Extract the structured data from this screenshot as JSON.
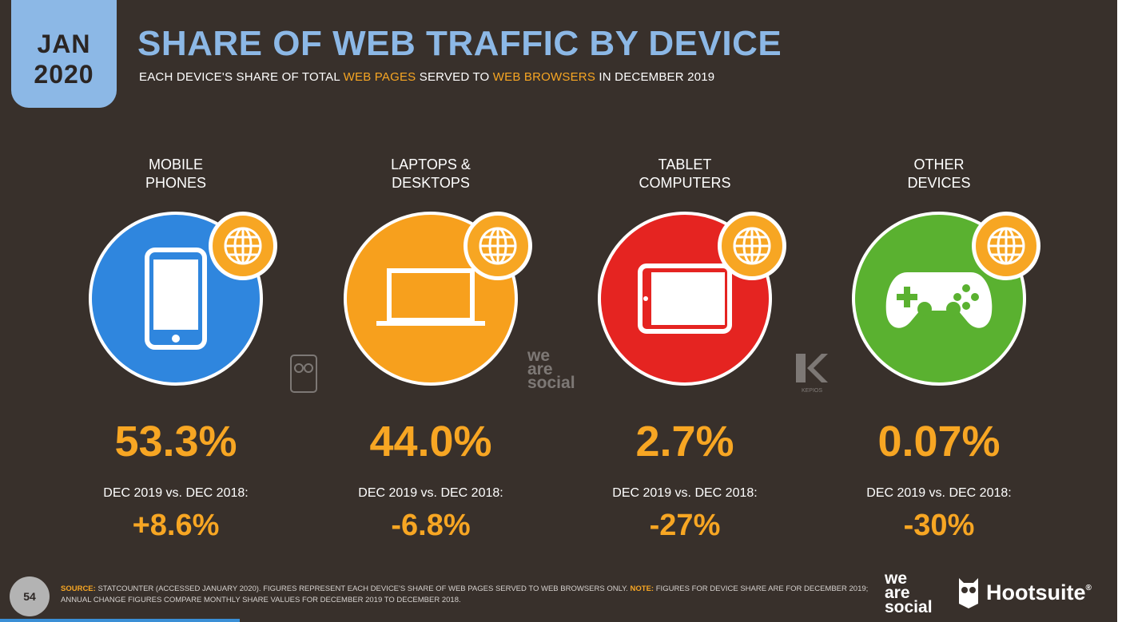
{
  "header": {
    "badge_month": "JAN",
    "badge_year": "2020",
    "title": "SHARE OF WEB TRAFFIC BY DEVICE",
    "subtitle_part1": "EACH DEVICE'S SHARE OF TOTAL ",
    "subtitle_hl1": "WEB PAGES",
    "subtitle_part2": " SERVED TO ",
    "subtitle_hl2": "WEB BROWSERS",
    "subtitle_part3": " IN DECEMBER 2019"
  },
  "devices": [
    {
      "label_line1": "MOBILE",
      "label_line2": "PHONES",
      "value": "53.3%",
      "change_label": "DEC 2019 vs. DEC 2018:",
      "change": "+8.6%",
      "color": "#2f86de",
      "icon": "smartphone-icon"
    },
    {
      "label_line1": "LAPTOPS &",
      "label_line2": "DESKTOPS",
      "value": "44.0%",
      "change_label": "DEC 2019 vs. DEC 2018:",
      "change": "-6.8%",
      "color": "#f7a01d",
      "icon": "laptop-icon"
    },
    {
      "label_line1": "TABLET",
      "label_line2": "COMPUTERS",
      "value": "2.7%",
      "change_label": "DEC 2019 vs. DEC 2018:",
      "change": "-27%",
      "color": "#e52421",
      "icon": "tablet-icon"
    },
    {
      "label_line1": "OTHER",
      "label_line2": "DEVICES",
      "value": "0.07%",
      "change_label": "DEC 2019 vs. DEC 2018:",
      "change": "-30%",
      "color": "#5ab130",
      "icon": "gamepad-icon"
    }
  ],
  "watermarks": {
    "social_line1": "we",
    "social_line2": "are",
    "social_line3": "social",
    "kepios": "KEPIOS"
  },
  "footer": {
    "page_number": "54",
    "source_label": "SOURCE:",
    "source_text": " STATCOUNTER (ACCESSED JANUARY 2020). FIGURES REPRESENT EACH DEVICE'S SHARE OF WEB PAGES SERVED TO WEB BROWSERS ONLY. ",
    "note_label": "NOTE:",
    "note_text": " FIGURES FOR DEVICE SHARE ARE FOR DECEMBER 2019; ANNUAL CHANGE FIGURES COMPARE MONTHLY SHARE VALUES FOR DECEMBER 2019 TO DECEMBER 2018.",
    "logo_we": "we",
    "logo_are": "are",
    "logo_social": "social",
    "logo_hootsuite": "Hootsuite",
    "logo_hootsuite_mark": "®"
  },
  "colors": {
    "background": "#38302b",
    "accent_orange": "#f7a623",
    "accent_blue": "#8cb8e6"
  }
}
